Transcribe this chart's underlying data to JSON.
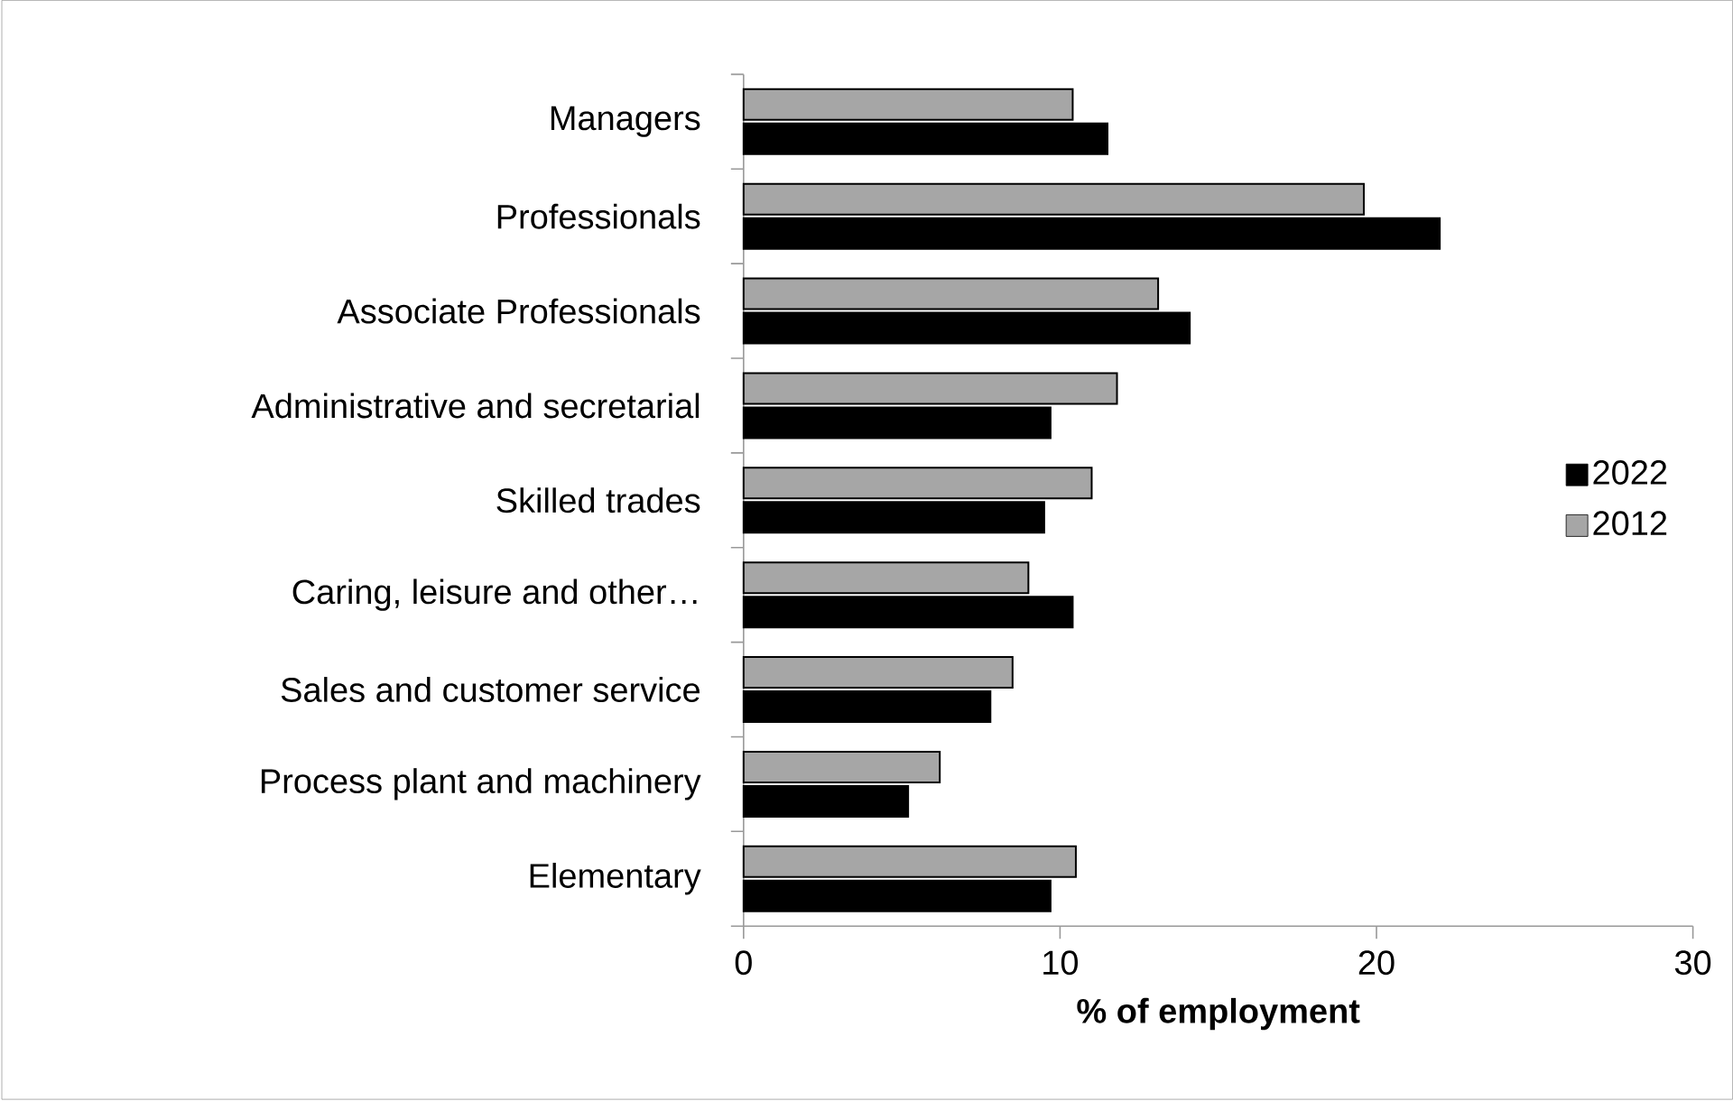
{
  "chart_data": {
    "type": "bar",
    "orientation": "horizontal",
    "xlabel": "% of employment",
    "categories": [
      "Managers",
      "Professionals",
      "Associate Professionals",
      "Administrative and secretarial",
      "Skilled trades",
      "Caring, leisure and other…",
      "Sales and customer service",
      "Process plant and machinery",
      "Elementary"
    ],
    "series": [
      {
        "name": "2022",
        "color": "#000000",
        "values": [
          11.5,
          22.0,
          14.1,
          9.7,
          9.5,
          10.4,
          7.8,
          5.2,
          9.7
        ]
      },
      {
        "name": "2012",
        "color": "#a6a6a6",
        "values": [
          10.4,
          19.6,
          13.1,
          11.8,
          11.0,
          9.0,
          8.5,
          6.2,
          10.5
        ]
      }
    ],
    "xlim": [
      0,
      30
    ],
    "xticks": [
      0,
      10,
      20,
      30
    ],
    "legend": "right",
    "grid": false
  }
}
